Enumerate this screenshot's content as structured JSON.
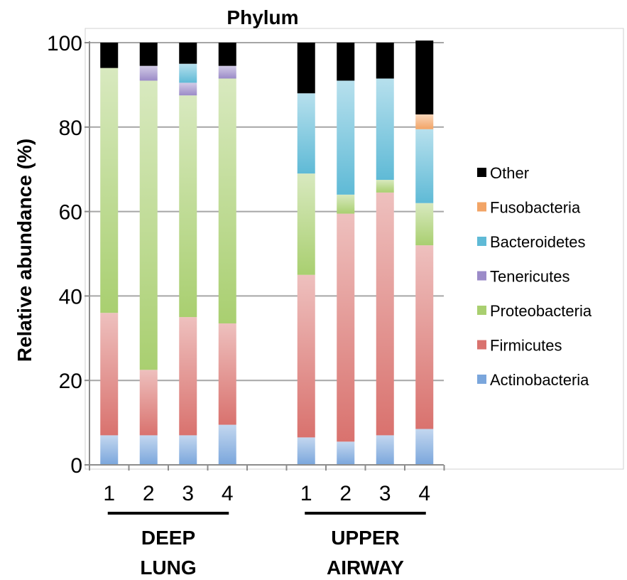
{
  "chart_data": {
    "type": "bar",
    "stacked": true,
    "title": "Phylum",
    "ylabel": "Relative abundance (%)",
    "xlabel": "",
    "ylim": [
      0,
      100
    ],
    "yticks": [
      "0",
      "20",
      "40",
      "60",
      "80",
      "100"
    ],
    "grid": true,
    "legend_position": "right",
    "groups": [
      {
        "label": [
          "DEEP",
          "LUNG"
        ],
        "categories": [
          "1",
          "2",
          "3",
          "4"
        ]
      },
      {
        "label": [
          "UPPER",
          "AIRWAY"
        ],
        "categories": [
          "1",
          "2",
          "3",
          "4"
        ]
      }
    ],
    "series": [
      {
        "name": "Actinobacteria",
        "color": "#7aa6dc",
        "values": [
          7,
          7,
          7,
          9.5,
          6.5,
          5.5,
          7,
          8.5
        ]
      },
      {
        "name": "Firmicutes",
        "color": "#d9726e",
        "values": [
          29,
          15.5,
          28,
          24,
          38.5,
          54,
          57.5,
          43.5
        ]
      },
      {
        "name": "Proteobacteria",
        "color": "#a9cf70",
        "values": [
          58,
          68.5,
          52.5,
          58,
          24,
          4.5,
          3,
          10
        ]
      },
      {
        "name": "Tenericutes",
        "color": "#9b8bc8",
        "values": [
          0,
          3.5,
          3,
          3,
          0,
          0,
          0,
          0
        ]
      },
      {
        "name": "Bacteroidetes",
        "color": "#5fbad6",
        "values": [
          0,
          0,
          4.5,
          0,
          19,
          27,
          24,
          17.5
        ]
      },
      {
        "name": "Fusobacteria",
        "color": "#f2a466",
        "values": [
          0,
          0,
          0,
          0,
          0,
          0,
          0,
          3.5
        ]
      },
      {
        "name": "Other",
        "color": "#000000",
        "values": [
          6,
          5.5,
          5,
          5.5,
          12,
          9,
          8.5,
          17.5
        ]
      }
    ],
    "legend_order": [
      "Other",
      "Fusobacteria",
      "Bacteroidetes",
      "Tenericutes",
      "Proteobacteria",
      "Firmicutes",
      "Actinobacteria"
    ]
  }
}
